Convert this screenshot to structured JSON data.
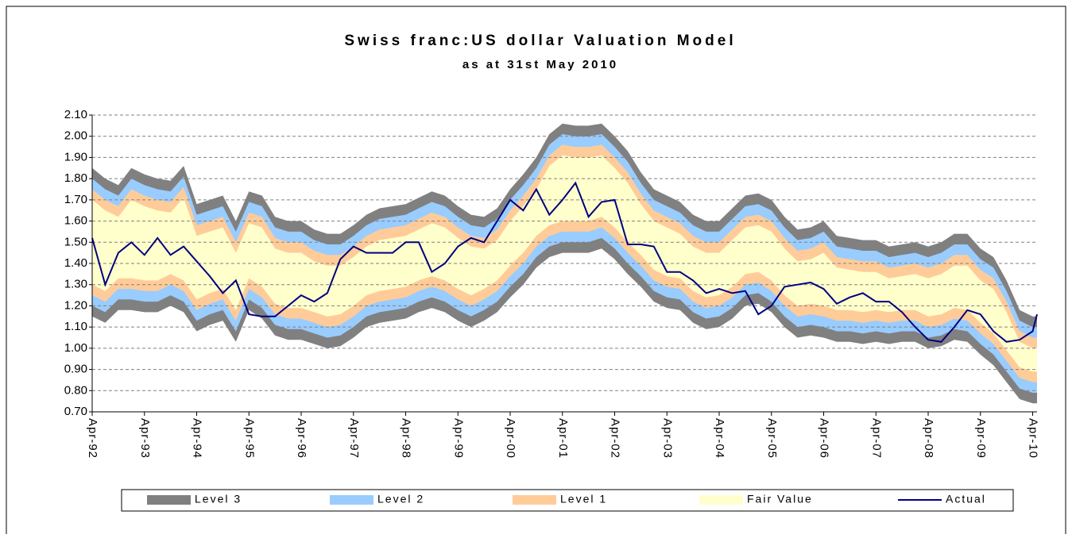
{
  "chart_data": {
    "type": "band",
    "title": "Swiss franc:US dollar Valuation Model",
    "subtitle": "as at 31st May 2010",
    "x": [
      "1992-04",
      "1992-07",
      "1992-10",
      "1993-01",
      "1993-04",
      "1993-07",
      "1993-10",
      "1994-01",
      "1994-04",
      "1994-07",
      "1994-10",
      "1995-01",
      "1995-04",
      "1995-07",
      "1995-10",
      "1996-01",
      "1996-04",
      "1996-07",
      "1996-10",
      "1997-01",
      "1997-04",
      "1997-07",
      "1997-10",
      "1998-01",
      "1998-04",
      "1998-07",
      "1998-10",
      "1999-01",
      "1999-04",
      "1999-07",
      "1999-10",
      "2000-01",
      "2000-04",
      "2000-07",
      "2000-10",
      "2001-01",
      "2001-04",
      "2001-07",
      "2001-10",
      "2002-01",
      "2002-04",
      "2002-07",
      "2002-10",
      "2003-01",
      "2003-04",
      "2003-07",
      "2003-10",
      "2004-01",
      "2004-04",
      "2004-07",
      "2004-10",
      "2005-01",
      "2005-04",
      "2005-07",
      "2005-10",
      "2006-01",
      "2006-04",
      "2006-07",
      "2006-10",
      "2007-01",
      "2007-04",
      "2007-07",
      "2007-10",
      "2008-01",
      "2008-04",
      "2008-07",
      "2008-10",
      "2009-01",
      "2009-04",
      "2009-07",
      "2009-10",
      "2010-01",
      "2010-04",
      "2010-05"
    ],
    "xlim": [
      "1992-04",
      "2010-05"
    ],
    "xticks": [
      {
        "value": "1992-04",
        "label": "Apr-92"
      },
      {
        "value": "1993-04",
        "label": "Apr-93"
      },
      {
        "value": "1994-04",
        "label": "Apr-94"
      },
      {
        "value": "1995-04",
        "label": "Apr-95"
      },
      {
        "value": "1996-04",
        "label": "Apr-96"
      },
      {
        "value": "1997-04",
        "label": "Apr-97"
      },
      {
        "value": "1998-04",
        "label": "Apr-98"
      },
      {
        "value": "1999-04",
        "label": "Apr-99"
      },
      {
        "value": "2000-04",
        "label": "Apr-00"
      },
      {
        "value": "2001-04",
        "label": "Apr-01"
      },
      {
        "value": "2002-04",
        "label": "Apr-02"
      },
      {
        "value": "2003-04",
        "label": "Apr-03"
      },
      {
        "value": "2004-04",
        "label": "Apr-04"
      },
      {
        "value": "2005-04",
        "label": "Apr-05"
      },
      {
        "value": "2006-04",
        "label": "Apr-06"
      },
      {
        "value": "2007-04",
        "label": "Apr-07"
      },
      {
        "value": "2008-04",
        "label": "Apr-08"
      },
      {
        "value": "2009-04",
        "label": "Apr-09"
      },
      {
        "value": "2010-04",
        "label": "Apr-10"
      }
    ],
    "ylim": [
      0.7,
      2.1
    ],
    "yticks": [
      {
        "value": 0.7,
        "label": "0.70"
      },
      {
        "value": 0.8,
        "label": "0.80"
      },
      {
        "value": 0.9,
        "label": "0.90"
      },
      {
        "value": 1.0,
        "label": "1.00"
      },
      {
        "value": 1.1,
        "label": "1.10"
      },
      {
        "value": 1.2,
        "label": "1.20"
      },
      {
        "value": 1.3,
        "label": "1.30"
      },
      {
        "value": 1.4,
        "label": "1.40"
      },
      {
        "value": 1.5,
        "label": "1.50"
      },
      {
        "value": 1.6,
        "label": "1.60"
      },
      {
        "value": 1.7,
        "label": "1.70"
      },
      {
        "value": 1.8,
        "label": "1.80"
      },
      {
        "value": 1.9,
        "label": "1.90"
      },
      {
        "value": 2.0,
        "label": "2.00"
      },
      {
        "value": 2.1,
        "label": "2.10"
      }
    ],
    "grid": true,
    "series": [
      {
        "name": "Level 3",
        "color": "#808080",
        "width": 0.05
      },
      {
        "name": "Level 2",
        "color": "#99ccff",
        "width": 0.05
      },
      {
        "name": "Level 1",
        "color": "#ffcc99",
        "width": 0.05
      },
      {
        "name": "Fair Value",
        "color": "#ffffcc",
        "high": [
          1.7,
          1.65,
          1.62,
          1.7,
          1.67,
          1.65,
          1.64,
          1.71,
          1.53,
          1.55,
          1.57,
          1.45,
          1.59,
          1.57,
          1.47,
          1.45,
          1.45,
          1.41,
          1.39,
          1.39,
          1.43,
          1.48,
          1.51,
          1.52,
          1.53,
          1.56,
          1.59,
          1.57,
          1.52,
          1.48,
          1.47,
          1.51,
          1.6,
          1.67,
          1.75,
          1.86,
          1.91,
          1.9,
          1.9,
          1.91,
          1.85,
          1.78,
          1.68,
          1.6,
          1.57,
          1.54,
          1.48,
          1.45,
          1.45,
          1.51,
          1.57,
          1.58,
          1.55,
          1.47,
          1.41,
          1.42,
          1.45,
          1.38,
          1.37,
          1.36,
          1.36,
          1.33,
          1.34,
          1.35,
          1.33,
          1.35,
          1.39,
          1.39,
          1.32,
          1.28,
          1.17,
          1.03,
          1.0,
          1.0
        ],
        "low": [
          1.3,
          1.27,
          1.33,
          1.33,
          1.32,
          1.32,
          1.35,
          1.32,
          1.23,
          1.26,
          1.28,
          1.18,
          1.33,
          1.29,
          1.21,
          1.19,
          1.19,
          1.17,
          1.15,
          1.16,
          1.2,
          1.25,
          1.27,
          1.28,
          1.29,
          1.32,
          1.34,
          1.32,
          1.28,
          1.25,
          1.28,
          1.32,
          1.39,
          1.45,
          1.53,
          1.58,
          1.6,
          1.6,
          1.6,
          1.62,
          1.57,
          1.5,
          1.44,
          1.37,
          1.34,
          1.33,
          1.27,
          1.24,
          1.25,
          1.29,
          1.35,
          1.36,
          1.32,
          1.25,
          1.2,
          1.21,
          1.2,
          1.18,
          1.18,
          1.17,
          1.18,
          1.17,
          1.18,
          1.18,
          1.15,
          1.16,
          1.19,
          1.18,
          1.12,
          1.07,
          0.99,
          0.91,
          0.89,
          0.89
        ]
      },
      {
        "name": "Actual",
        "color": "#000080",
        "values": [
          1.52,
          1.3,
          1.45,
          1.5,
          1.44,
          1.52,
          1.44,
          1.48,
          1.41,
          1.34,
          1.26,
          1.32,
          1.16,
          1.15,
          1.15,
          1.2,
          1.25,
          1.22,
          1.26,
          1.42,
          1.48,
          1.45,
          1.45,
          1.45,
          1.5,
          1.5,
          1.36,
          1.4,
          1.48,
          1.52,
          1.5,
          1.6,
          1.7,
          1.65,
          1.75,
          1.63,
          1.7,
          1.78,
          1.62,
          1.69,
          1.7,
          1.49,
          1.49,
          1.48,
          1.36,
          1.36,
          1.32,
          1.26,
          1.28,
          1.26,
          1.27,
          1.16,
          1.2,
          1.29,
          1.3,
          1.31,
          1.28,
          1.21,
          1.24,
          1.26,
          1.22,
          1.22,
          1.17,
          1.1,
          1.04,
          1.03,
          1.1,
          1.18,
          1.16,
          1.08,
          1.03,
          1.04,
          1.08,
          1.16
        ]
      }
    ]
  }
}
